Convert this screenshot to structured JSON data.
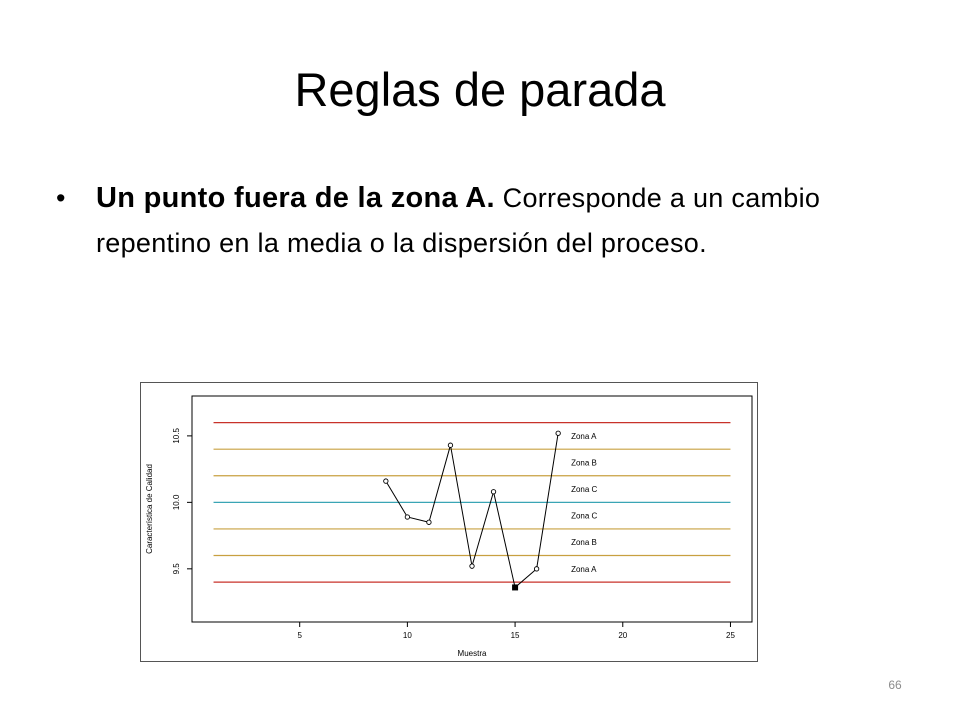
{
  "slide": {
    "title": "Reglas de parada",
    "bullet": {
      "strong": "Un punto fuera de la zona A.",
      "text": " Corresponde a un cambio repentino en la media o la dispersión del proceso."
    },
    "page_number": "66"
  },
  "chart_data": {
    "type": "line",
    "xlabel": "Muestra",
    "ylabel": "Característica de Calidad",
    "xlim": [
      0,
      26
    ],
    "ylim": [
      9.1,
      10.8
    ],
    "xticks": [
      5,
      10,
      15,
      20,
      25
    ],
    "yticks": [
      9.5,
      10.0,
      10.5
    ],
    "ytick_labels": [
      "9.5",
      "10.0",
      "10.5"
    ],
    "grid": false,
    "series": [
      {
        "x": [
          9,
          10,
          11,
          12,
          13,
          14,
          15,
          16,
          17
        ],
        "y": [
          10.16,
          9.89,
          9.85,
          10.43,
          9.52,
          10.08,
          9.36,
          9.5,
          10.52
        ],
        "highlight_index": 6
      }
    ],
    "control_lines": [
      {
        "y": 10.6,
        "color": "#c8322a"
      },
      {
        "y": 10.4,
        "color": "#c8a040"
      },
      {
        "y": 10.2,
        "color": "#c8a040"
      },
      {
        "y": 10.0,
        "color": "#3aa5b5"
      },
      {
        "y": 9.8,
        "color": "#c8a040"
      },
      {
        "y": 9.6,
        "color": "#c8a040"
      },
      {
        "y": 9.4,
        "color": "#c8322a"
      }
    ],
    "line_x_range": [
      1,
      25
    ],
    "zone_labels": [
      {
        "label": "Zona A",
        "y": 10.5
      },
      {
        "label": "Zona B",
        "y": 10.3
      },
      {
        "label": "Zona C",
        "y": 10.1
      },
      {
        "label": "Zona C",
        "y": 9.9
      },
      {
        "label": "Zona B",
        "y": 9.7
      },
      {
        "label": "Zona A",
        "y": 9.5
      }
    ]
  }
}
